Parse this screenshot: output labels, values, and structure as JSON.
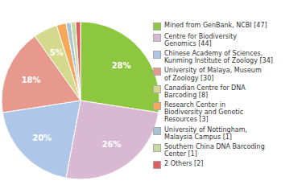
{
  "chart_data": {
    "type": "pie",
    "categories": [
      "Mined from GenBank, NCBI [47]",
      "Centre for Biodiversity\nGenomics [44]",
      "Chinese Academy of Sciences,\nKunming Institute of Zoology [34]",
      "University of Malaya, Museum\nof Zoology [30]",
      "Canadian Centre for DNA\nBarcoding [8]",
      "Research Center in\nBiodiversity and Genetic\nResources [3]",
      "University of Nottingham,\nMalaysia Campus [1]",
      "Southern China DNA Barcoding\nCenter [1]",
      "2 Others [2]"
    ],
    "values": [
      28,
      26,
      20,
      18,
      5,
      2,
      1,
      1,
      1
    ],
    "value_labels": [
      "28%",
      "26%",
      "20%",
      "18%",
      "5%",
      null,
      null,
      null,
      null
    ],
    "data_labels": true,
    "colors": [
      "#8dc63f",
      "#d9b8d4",
      "#aec6e8",
      "#e8998d",
      "#d4d98b",
      "#f5a85a",
      "#a8c4d4",
      "#c8d9a0",
      "#e05c5c"
    ],
    "legend": "right"
  }
}
